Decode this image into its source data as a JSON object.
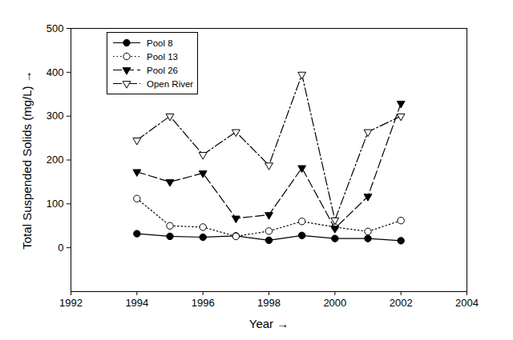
{
  "chart_data": {
    "type": "line",
    "x_label": "Year",
    "y_label": "Total Suspended Solids (mg/L)",
    "x": [
      1994,
      1995,
      1996,
      1997,
      1998,
      1999,
      2000,
      2001,
      2002
    ],
    "xlim": [
      1992,
      2004
    ],
    "xticks": [
      1992,
      1994,
      1996,
      1998,
      2000,
      2002,
      2004
    ],
    "ylim": [
      -100,
      500
    ],
    "yticks": [
      0,
      100,
      200,
      300,
      400,
      500
    ],
    "grid": false,
    "legend": "top-left",
    "series": [
      {
        "name": "Pool 8",
        "color": "#000000",
        "marker": "circle",
        "line_style": "solid",
        "values": [
          32,
          26,
          24,
          27,
          17,
          28,
          21,
          21,
          16
        ]
      },
      {
        "name": "Pool 13",
        "color": "#000000",
        "marker": "circle-open",
        "line_style": "dotted",
        "values": [
          112,
          50,
          47,
          26,
          38,
          60,
          47,
          37,
          62
        ]
      },
      {
        "name": "Pool 26",
        "color": "#000000",
        "marker": "triangle-down",
        "line_style": "dashed",
        "values": [
          173,
          150,
          170,
          67,
          75,
          182,
          44,
          117,
          329
        ]
      },
      {
        "name": "Open River",
        "color": "#000000",
        "marker": "triangle-down-open",
        "line_style": "dashdot",
        "values": [
          245,
          300,
          212,
          264,
          188,
          395,
          63,
          264,
          300
        ]
      }
    ]
  }
}
